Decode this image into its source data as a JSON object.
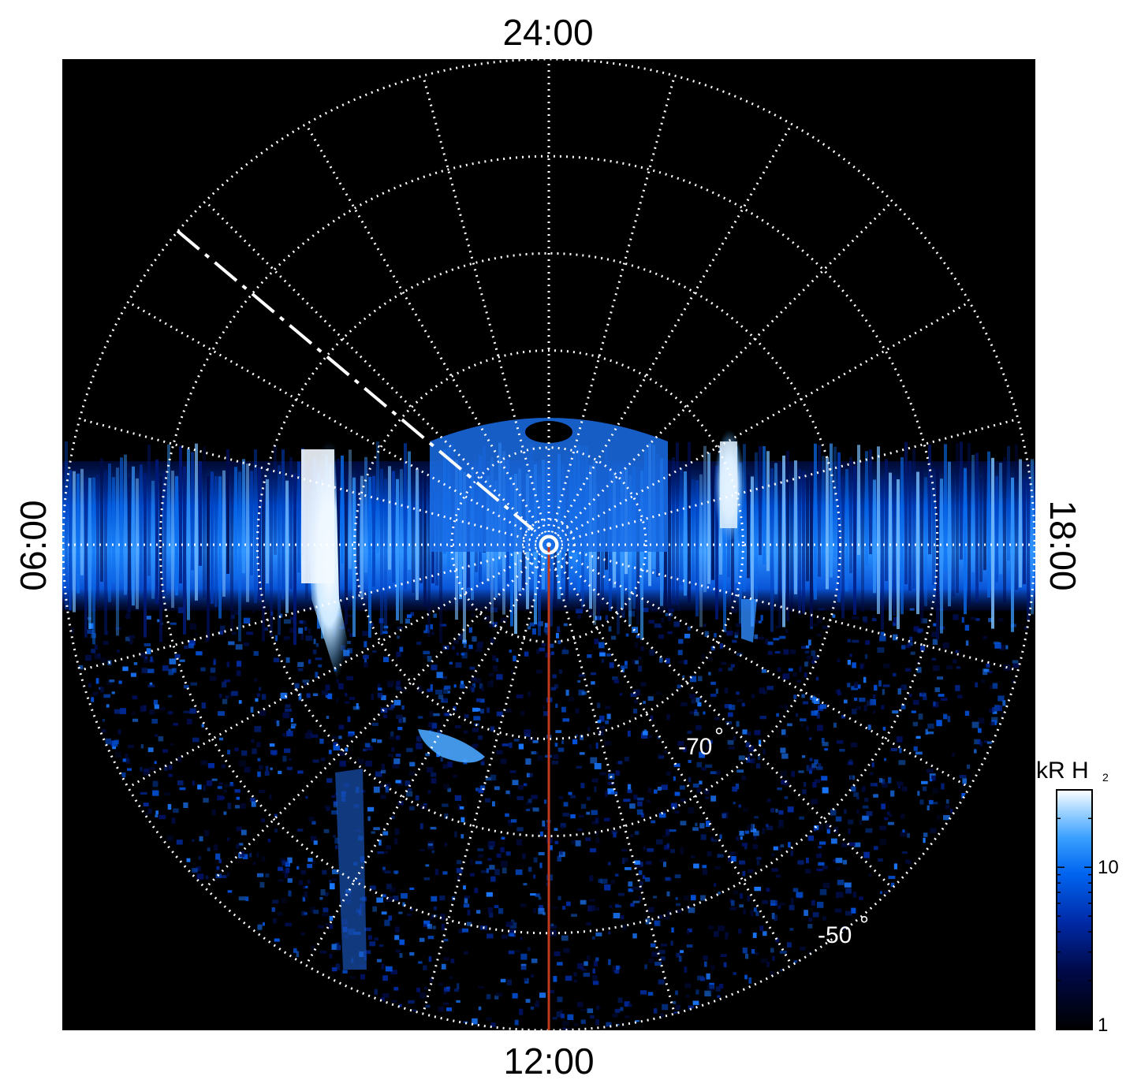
{
  "chart_data": {
    "type": "heatmap",
    "projection": "polar (southern hemisphere, local time vs latitude)",
    "local_time_labels": {
      "top": "24:00",
      "bottom": "12:00",
      "left": "06:00",
      "right": "18:00"
    },
    "latitude_labels": [
      {
        "text": "-70",
        "lat": -70
      },
      {
        "text": "-50",
        "lat": -50
      }
    ],
    "latitude_circles_deg": [
      -90,
      -80,
      -70,
      -60,
      -50,
      -40
    ],
    "outer_latitude_deg": -40,
    "local_time_gridlines_hours": [
      0,
      1,
      2,
      3,
      4,
      5,
      6,
      7,
      8,
      9,
      10,
      11,
      12,
      13,
      14,
      15,
      16,
      17,
      18,
      19,
      20,
      21,
      22,
      23
    ],
    "grid": true,
    "colorbar": {
      "title": "kR H",
      "title_subscript": "2",
      "scale": "log",
      "range": [
        1,
        30
      ],
      "ticks": [
        {
          "label": "1",
          "value": 1
        },
        {
          "label": "10",
          "value": 10
        }
      ],
      "colors": [
        "#000000",
        "#000a4a",
        "#002aa8",
        "#0064f0",
        "#3aa0ff",
        "#a8d8ff",
        "#ffffff"
      ]
    },
    "features": {
      "main_emission_band": {
        "description_latitude_range": [
          -85,
          -70
        ],
        "brightness_kR": [
          5,
          30
        ]
      },
      "bright_spots_local_time": [
        7.5,
        16.0
      ],
      "red_line_local_time": 12,
      "dashed_line_local_time": 4.0
    },
    "background_color": "#000000",
    "red_line_color": "#c0391b"
  }
}
